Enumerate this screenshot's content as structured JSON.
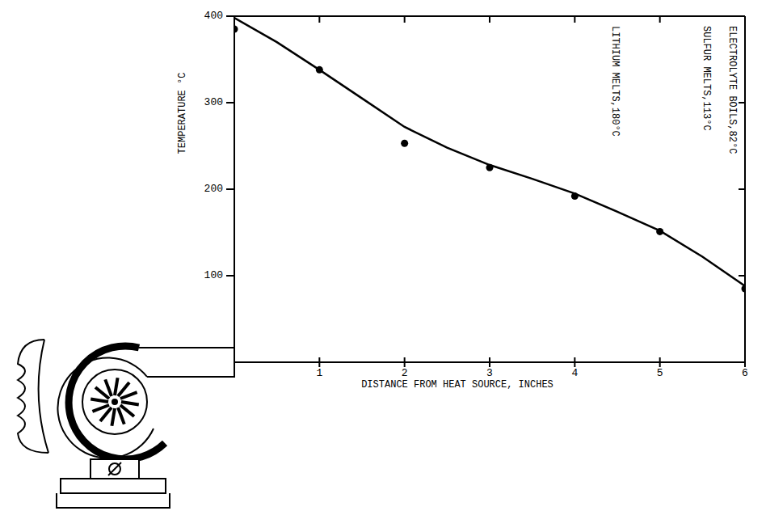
{
  "chart_data": {
    "type": "line",
    "x_label": "DISTANCE FROM HEAT SOURCE, INCHES",
    "y_label": "TEMPERATURE °C",
    "xlim": [
      0,
      6
    ],
    "ylim": [
      0,
      400
    ],
    "xticks": [
      1,
      2,
      3,
      4,
      5,
      6
    ],
    "yticks": [
      100,
      200,
      300,
      400
    ],
    "grid": false,
    "series": [
      {
        "type": "scatter",
        "marker": "circle",
        "color": "#000000",
        "x": [
          0,
          1,
          2,
          3,
          4,
          5,
          6
        ],
        "values": [
          385,
          338,
          253,
          225,
          192,
          151,
          85
        ]
      },
      {
        "type": "line",
        "line_style": "solid",
        "color": "#000000",
        "x": [
          0,
          0.5,
          1,
          1.5,
          2,
          2.5,
          3,
          3.5,
          4,
          4.5,
          5,
          5.5,
          6
        ],
        "values": [
          398,
          370,
          338,
          305,
          272,
          248,
          228,
          212,
          195,
          174,
          152,
          122,
          88
        ]
      }
    ],
    "annotations": [
      "LITHIUM MELTS,180°C",
      "SULFUR MELTS,113°C",
      "ELECTROLYTE BOILS,82°C"
    ]
  }
}
